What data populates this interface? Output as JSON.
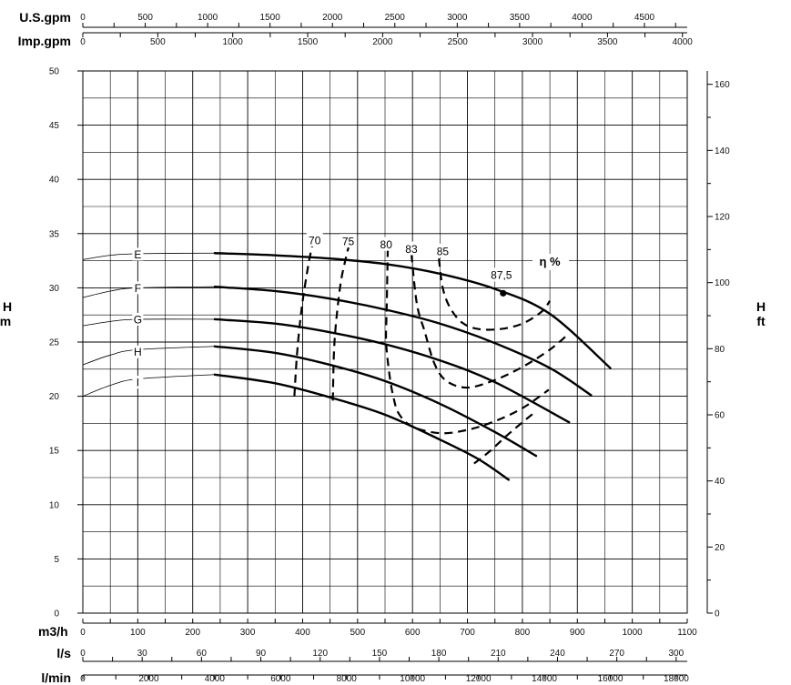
{
  "chart_data": {
    "type": "line",
    "title": "",
    "grid": true,
    "x_axis": {
      "label": "m3/h",
      "range": [
        0,
        1100
      ],
      "ticks": [
        "0",
        "100",
        "200",
        "300",
        "400",
        "500",
        "600",
        "700",
        "800",
        "900",
        "1000",
        "1100"
      ]
    },
    "y_axis_left": {
      "label": [
        "H",
        "m"
      ],
      "range": [
        0,
        50
      ],
      "ticks": [
        "0",
        "5",
        "10",
        "15",
        "20",
        "25",
        "30",
        "35",
        "40",
        "45",
        "50"
      ]
    },
    "y_axis_right": {
      "label": [
        "H",
        "ft"
      ],
      "range": [
        0,
        164.04
      ],
      "ticks": [
        "0",
        "20",
        "40",
        "60",
        "80",
        "100",
        "120",
        "140",
        "160"
      ]
    },
    "secondary_x_axes": [
      {
        "label": "U.S.gpm",
        "position": "top",
        "max": 4843,
        "ticks": [
          "0",
          "500",
          "1000",
          "1500",
          "2000",
          "2500",
          "3000",
          "3500",
          "4000",
          "4500"
        ]
      },
      {
        "label": "Imp.gpm",
        "position": "top",
        "max": 4032,
        "ticks": [
          "0",
          "500",
          "1000",
          "1500",
          "2000",
          "2500",
          "3000",
          "3500",
          "4000"
        ]
      },
      {
        "label": "l/s",
        "position": "bottom",
        "max": 305.6,
        "ticks": [
          "0",
          "30",
          "60",
          "90",
          "120",
          "150",
          "180",
          "210",
          "240",
          "270",
          "300"
        ]
      },
      {
        "label": "l/min",
        "position": "bottom",
        "max": 18333,
        "ticks": [
          "0",
          "2000",
          "4000",
          "6000",
          "8000",
          "10000",
          "12000",
          "14000",
          "16000",
          "18000"
        ]
      }
    ],
    "series": [
      {
        "name": "E",
        "label_at": [
          100,
          33.1
        ],
        "extrapolated": [
          [
            0,
            32.6
          ],
          [
            50,
            33.0
          ],
          [
            100,
            33.15
          ],
          [
            240,
            33.2
          ]
        ],
        "values": [
          [
            240,
            33.2
          ],
          [
            350,
            33.0
          ],
          [
            450,
            32.7
          ],
          [
            550,
            32.2
          ],
          [
            650,
            31.3
          ],
          [
            750,
            29.9
          ],
          [
            850,
            27.6
          ],
          [
            960,
            22.6
          ]
        ]
      },
      {
        "name": "F",
        "label_at": [
          100,
          30.0
        ],
        "extrapolated": [
          [
            0,
            29.1
          ],
          [
            50,
            29.7
          ],
          [
            100,
            30.0
          ],
          [
            240,
            30.1
          ]
        ],
        "values": [
          [
            240,
            30.1
          ],
          [
            350,
            29.7
          ],
          [
            450,
            29.0
          ],
          [
            550,
            28.0
          ],
          [
            650,
            26.7
          ],
          [
            750,
            24.9
          ],
          [
            850,
            22.6
          ],
          [
            925,
            20.1
          ]
        ]
      },
      {
        "name": "G",
        "label_at": [
          100,
          27.1
        ],
        "extrapolated": [
          [
            0,
            26.5
          ],
          [
            50,
            26.9
          ],
          [
            100,
            27.1
          ],
          [
            240,
            27.1
          ]
        ],
        "values": [
          [
            240,
            27.1
          ],
          [
            350,
            26.7
          ],
          [
            450,
            25.9
          ],
          [
            550,
            24.8
          ],
          [
            650,
            23.3
          ],
          [
            750,
            21.3
          ],
          [
            885,
            17.6
          ]
        ]
      },
      {
        "name": "H",
        "label_at": [
          100,
          24.1
        ],
        "extrapolated": [
          [
            0,
            22.9
          ],
          [
            50,
            23.8
          ],
          [
            100,
            24.3
          ],
          [
            240,
            24.6
          ]
        ],
        "values": [
          [
            240,
            24.6
          ],
          [
            350,
            24.0
          ],
          [
            450,
            22.9
          ],
          [
            550,
            21.4
          ],
          [
            650,
            19.3
          ],
          [
            750,
            16.7
          ],
          [
            825,
            14.5
          ]
        ]
      },
      {
        "name": "I",
        "label_at": [
          100,
          21.3
        ],
        "extrapolated": [
          [
            0,
            20.0
          ],
          [
            50,
            21.0
          ],
          [
            100,
            21.6
          ],
          [
            240,
            22.0
          ]
        ],
        "values": [
          [
            240,
            22.0
          ],
          [
            350,
            21.2
          ],
          [
            450,
            19.9
          ],
          [
            550,
            18.3
          ],
          [
            650,
            16.0
          ],
          [
            720,
            14.2
          ],
          [
            775,
            12.3
          ]
        ]
      }
    ],
    "efficiency_contours": [
      {
        "label": "70",
        "label_at": [
          422,
          34.4
        ],
        "points": [
          [
            385,
            20.0
          ],
          [
            390,
            24.0
          ],
          [
            398,
            28.0
          ],
          [
            410,
            32.0
          ],
          [
            418,
            34.0
          ]
        ]
      },
      {
        "label": "75",
        "label_at": [
          483,
          34.3
        ],
        "points": [
          [
            455,
            19.6
          ],
          [
            458,
            25.0
          ],
          [
            468,
            30.0
          ],
          [
            478,
            32.6
          ],
          [
            485,
            34.0
          ]
        ]
      },
      {
        "label": "80",
        "label_at": [
          552,
          34.0
        ],
        "points": [
          [
            555,
            33.6
          ],
          [
            553,
            28.0
          ],
          [
            552,
            25.0
          ],
          [
            558,
            22.0
          ],
          [
            565,
            20.0
          ],
          [
            575,
            18.4
          ],
          [
            600,
            17.2
          ],
          [
            650,
            16.6
          ],
          [
            700,
            16.9
          ],
          [
            750,
            17.7
          ],
          [
            800,
            18.9
          ],
          [
            848,
            20.6
          ]
        ]
      },
      {
        "label": "83",
        "label_at": [
          598,
          33.6
        ],
        "points": [
          [
            598,
            33.1
          ],
          [
            608,
            28.5
          ],
          [
            622,
            26.0
          ],
          [
            640,
            23.0
          ],
          [
            662,
            21.4
          ],
          [
            700,
            20.8
          ],
          [
            750,
            21.5
          ],
          [
            800,
            22.7
          ],
          [
            850,
            24.3
          ],
          [
            885,
            25.8
          ]
        ]
      },
      {
        "label": "85",
        "label_at": [
          655,
          33.4
        ],
        "points": [
          [
            648,
            32.7
          ],
          [
            655,
            30.0
          ],
          [
            668,
            28.2
          ],
          [
            690,
            26.8
          ],
          [
            720,
            26.2
          ],
          [
            760,
            26.2
          ],
          [
            800,
            26.7
          ],
          [
            835,
            27.8
          ],
          [
            850,
            28.8
          ]
        ]
      },
      {
        "label": "",
        "label_at": null,
        "points": [
          [
            712,
            13.8
          ],
          [
            740,
            14.9
          ],
          [
            770,
            16.3
          ],
          [
            800,
            17.6
          ],
          [
            822,
            18.5
          ]
        ]
      }
    ],
    "best_efficiency_point": {
      "label": "87,5",
      "x": 765,
      "y": 29.5
    },
    "efficiency_label": "η %"
  }
}
